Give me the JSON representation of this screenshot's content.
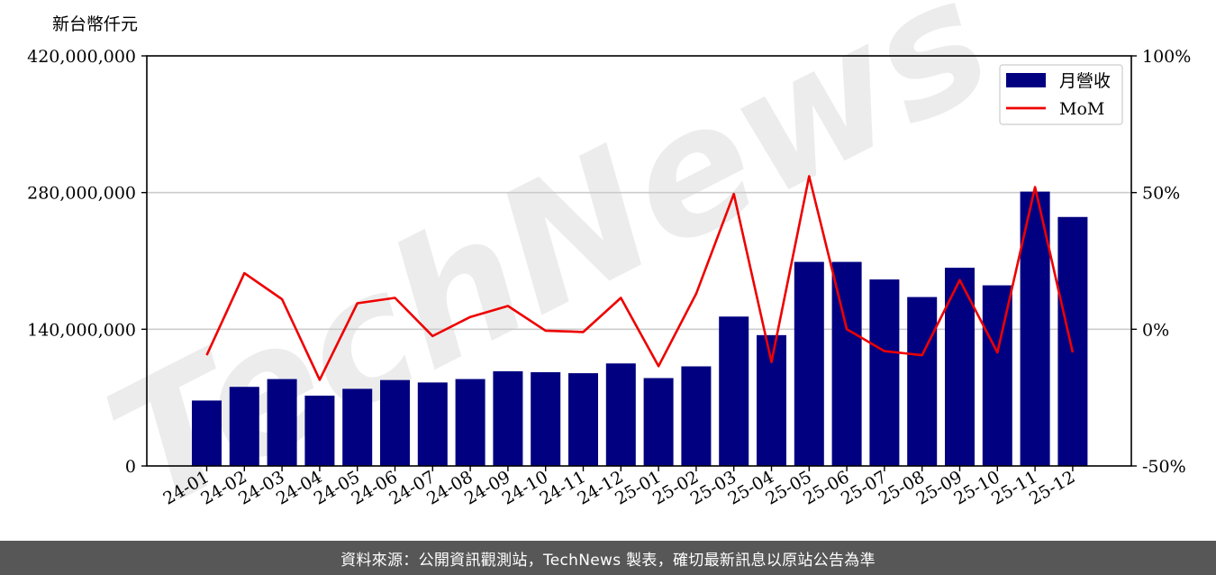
{
  "watermark": "TechNews",
  "footer": {
    "source_text": "資料來源：公開資訊觀測站，TechNews 製表，確切最新訊息以原站公告為準"
  },
  "colors": {
    "bar": "#000080",
    "line": "#ee0000",
    "grid": "#cccccc",
    "footer_bg": "#575757",
    "watermark": "#e6e6e6"
  },
  "chart_data": {
    "type": "bar",
    "unit_label": "新台幣仟元",
    "categories": [
      "24-01",
      "24-02",
      "24-03",
      "24-04",
      "24-05",
      "24-06",
      "24-07",
      "24-08",
      "24-09",
      "24-10",
      "24-11",
      "24-12",
      "25-01",
      "25-02",
      "25-03",
      "25-04",
      "25-05",
      "25-06",
      "25-07",
      "25-08",
      "25-09",
      "25-10",
      "25-11",
      "25-12"
    ],
    "series": [
      {
        "name": "月營收",
        "type": "bar",
        "axis": "left",
        "values": [
          67000000,
          81000000,
          89000000,
          72000000,
          79000000,
          88000000,
          85500000,
          89000000,
          97000000,
          96000000,
          95000000,
          105000000,
          90000000,
          102000000,
          153000000,
          134000000,
          209000000,
          209000000,
          191000000,
          173000000,
          203000000,
          185000000,
          281000000,
          255000000
        ]
      },
      {
        "name": "MoM",
        "type": "line",
        "axis": "right",
        "values": [
          -9.5,
          20.5,
          11,
          -18.5,
          9.5,
          11.5,
          -2.5,
          4.5,
          8.5,
          -0.5,
          -1,
          11.5,
          -13.5,
          13,
          49.5,
          -12,
          56,
          0,
          -8,
          -9.5,
          18,
          -8.5,
          52,
          -8.5
        ]
      }
    ],
    "y_left": {
      "min": 0,
      "max": 420000000,
      "ticks": [
        0,
        140000000,
        280000000,
        420000000
      ],
      "tick_labels": [
        "0",
        "140,000,000",
        "280,000,000",
        "420,000,000"
      ]
    },
    "y_right": {
      "min": -50,
      "max": 100,
      "ticks": [
        -50,
        0,
        50,
        100
      ],
      "tick_labels": [
        "-50%",
        "0%",
        "50%",
        "100%"
      ]
    },
    "grid": true,
    "legend": {
      "position": "top-right",
      "entries": [
        "月營收",
        "MoM"
      ]
    }
  }
}
